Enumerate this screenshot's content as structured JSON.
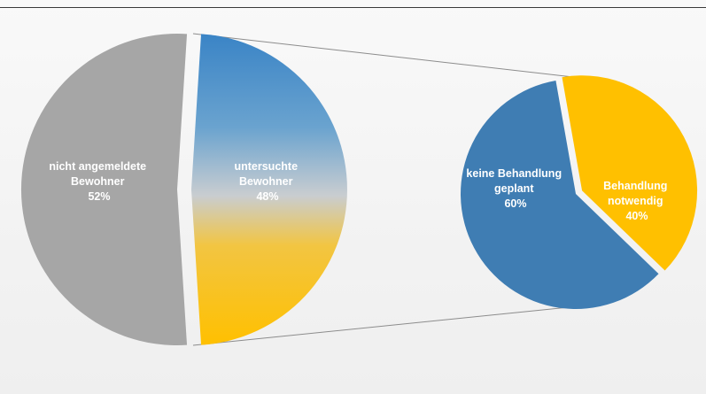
{
  "chart_data": [
    {
      "type": "pie",
      "slices": [
        {
          "label_line1": "nicht angemeldete",
          "label_line2": "Bewohner",
          "value": 52,
          "value_text": "52%",
          "color": "#a6a6a6"
        },
        {
          "label_line1": "untersuchte",
          "label_line2": "Bewohner",
          "value": 48,
          "value_text": "48%",
          "color_top": "#3e86c4",
          "color_bottom": "#ffc000"
        }
      ]
    },
    {
      "type": "pie",
      "slices": [
        {
          "label_line1": "keine Behandlung",
          "label_line2": "geplant",
          "value": 60,
          "value_text": "60%",
          "color": "#3f7db3"
        },
        {
          "label_line1": "Behandlung",
          "label_line2": "notwendig",
          "value": 40,
          "value_text": "40%",
          "color": "#ffc000"
        }
      ]
    }
  ]
}
